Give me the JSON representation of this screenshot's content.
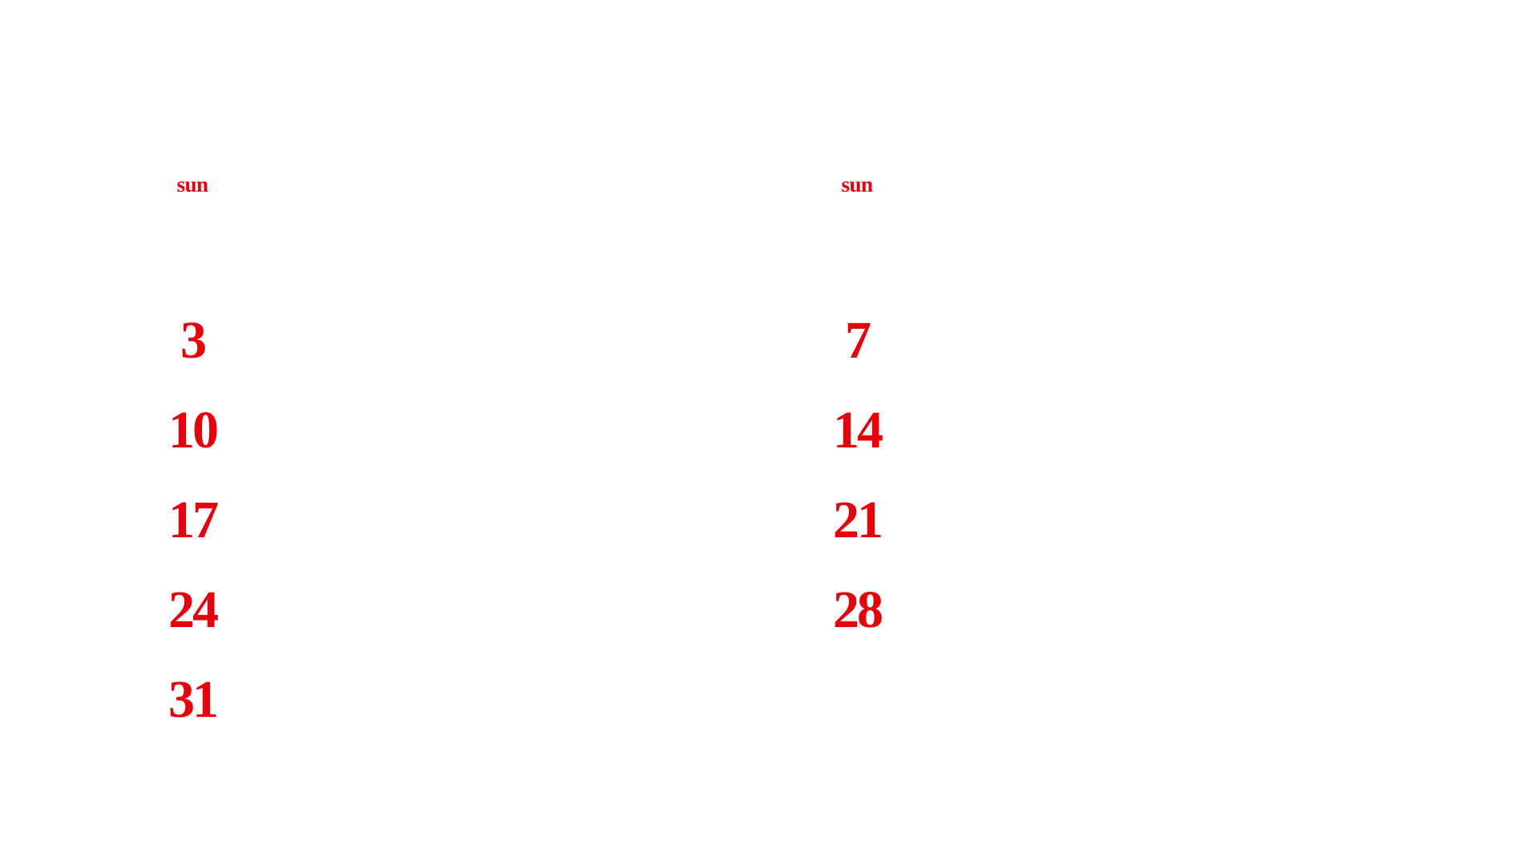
{
  "accent_color": "#e8000b",
  "months": [
    {
      "day_header": "sun",
      "dates": [
        "3",
        "10",
        "17",
        "24",
        "31"
      ]
    },
    {
      "day_header": "sun",
      "dates": [
        "7",
        "14",
        "21",
        "28"
      ]
    }
  ]
}
